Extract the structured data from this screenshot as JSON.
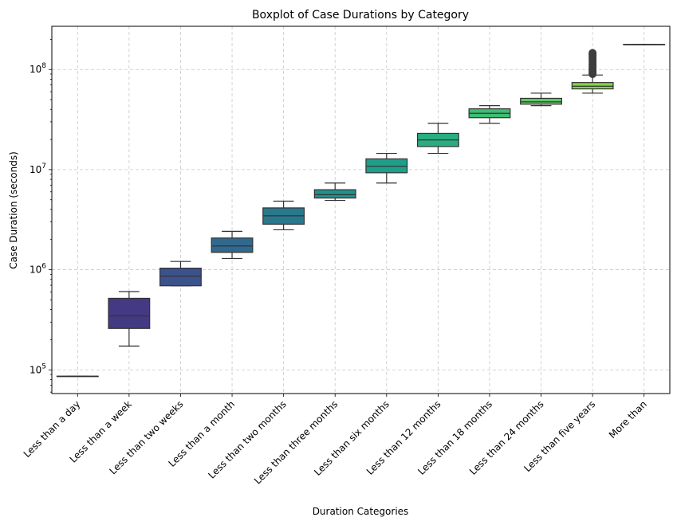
{
  "chart_data": {
    "type": "boxplot",
    "title": "Boxplot of Case Durations by Category",
    "xlabel": "Duration Categories",
    "ylabel": "Case Duration (seconds)",
    "yscale": "log",
    "ylim": [
      58000,
      270000000
    ],
    "yticks": [
      {
        "value": 100000,
        "base": "10",
        "exp": "5"
      },
      {
        "value": 1000000,
        "base": "10",
        "exp": "6"
      },
      {
        "value": 10000000,
        "base": "10",
        "exp": "7"
      },
      {
        "value": 100000000,
        "base": "10",
        "exp": "8"
      }
    ],
    "grid": true,
    "categories": [
      "Less than a day",
      "Less than a week",
      "Less than two weeks",
      "Less than a month",
      "Less than two months",
      "Less than three months",
      "Less than six months",
      "Less than 12 months",
      "Less than 18 months",
      "Less than 24 months",
      "Less than five years",
      "More than"
    ],
    "boxes": [
      {
        "min": 86400,
        "q1": 86400,
        "median": 86400,
        "q3": 86400,
        "max": 86400,
        "color": "#440154",
        "outliers": []
      },
      {
        "min": 172800,
        "q1": 259200,
        "median": 345600,
        "q3": 518400,
        "max": 604800,
        "color": "#443983",
        "outliers": []
      },
      {
        "min": 691200,
        "q1": 691200,
        "median": 864000,
        "q3": 1036800,
        "max": 1209600,
        "color": "#3b528b",
        "outliers": []
      },
      {
        "min": 1296000,
        "q1": 1490000,
        "median": 1728000,
        "q3": 2073600,
        "max": 2419200,
        "color": "#31688e",
        "outliers": []
      },
      {
        "min": 2505600,
        "q1": 2850000,
        "median": 3456000,
        "q3": 4147200,
        "max": 4838400,
        "color": "#2a788e",
        "outliers": []
      },
      {
        "min": 4924800,
        "q1": 5200000,
        "median": 5616000,
        "q3": 6300000,
        "max": 7344000,
        "color": "#21918c",
        "outliers": []
      },
      {
        "min": 7344000,
        "q1": 9300000,
        "median": 10800000,
        "q3": 12800000,
        "max": 14515200,
        "color": "#1f9e89",
        "outliers": []
      },
      {
        "min": 14515200,
        "q1": 17000000,
        "median": 19800000,
        "q3": 23000000,
        "max": 29000000,
        "color": "#28ae80",
        "outliers": []
      },
      {
        "min": 29000000,
        "q1": 33000000,
        "median": 36500000,
        "q3": 40500000,
        "max": 43500000,
        "color": "#3fbc73",
        "outliers": []
      },
      {
        "min": 43500000,
        "q1": 45000000,
        "median": 47500000,
        "q3": 51500000,
        "max": 58000000,
        "color": "#5ec962",
        "outliers": []
      },
      {
        "min": 58000000,
        "q1": 64000000,
        "median": 68000000,
        "q3": 74000000,
        "max": 88000000,
        "color": "#84d44b",
        "outliers": [
          90000000,
          93000000,
          96000000,
          100000000,
          104000000,
          108000000,
          112000000,
          118000000,
          124000000,
          130000000,
          136000000,
          142000000,
          146000000
        ]
      },
      {
        "min": 178000000,
        "q1": 178000000,
        "median": 178000000,
        "q3": 178000000,
        "max": 178000000,
        "color": "#addc30",
        "outliers": []
      }
    ]
  }
}
